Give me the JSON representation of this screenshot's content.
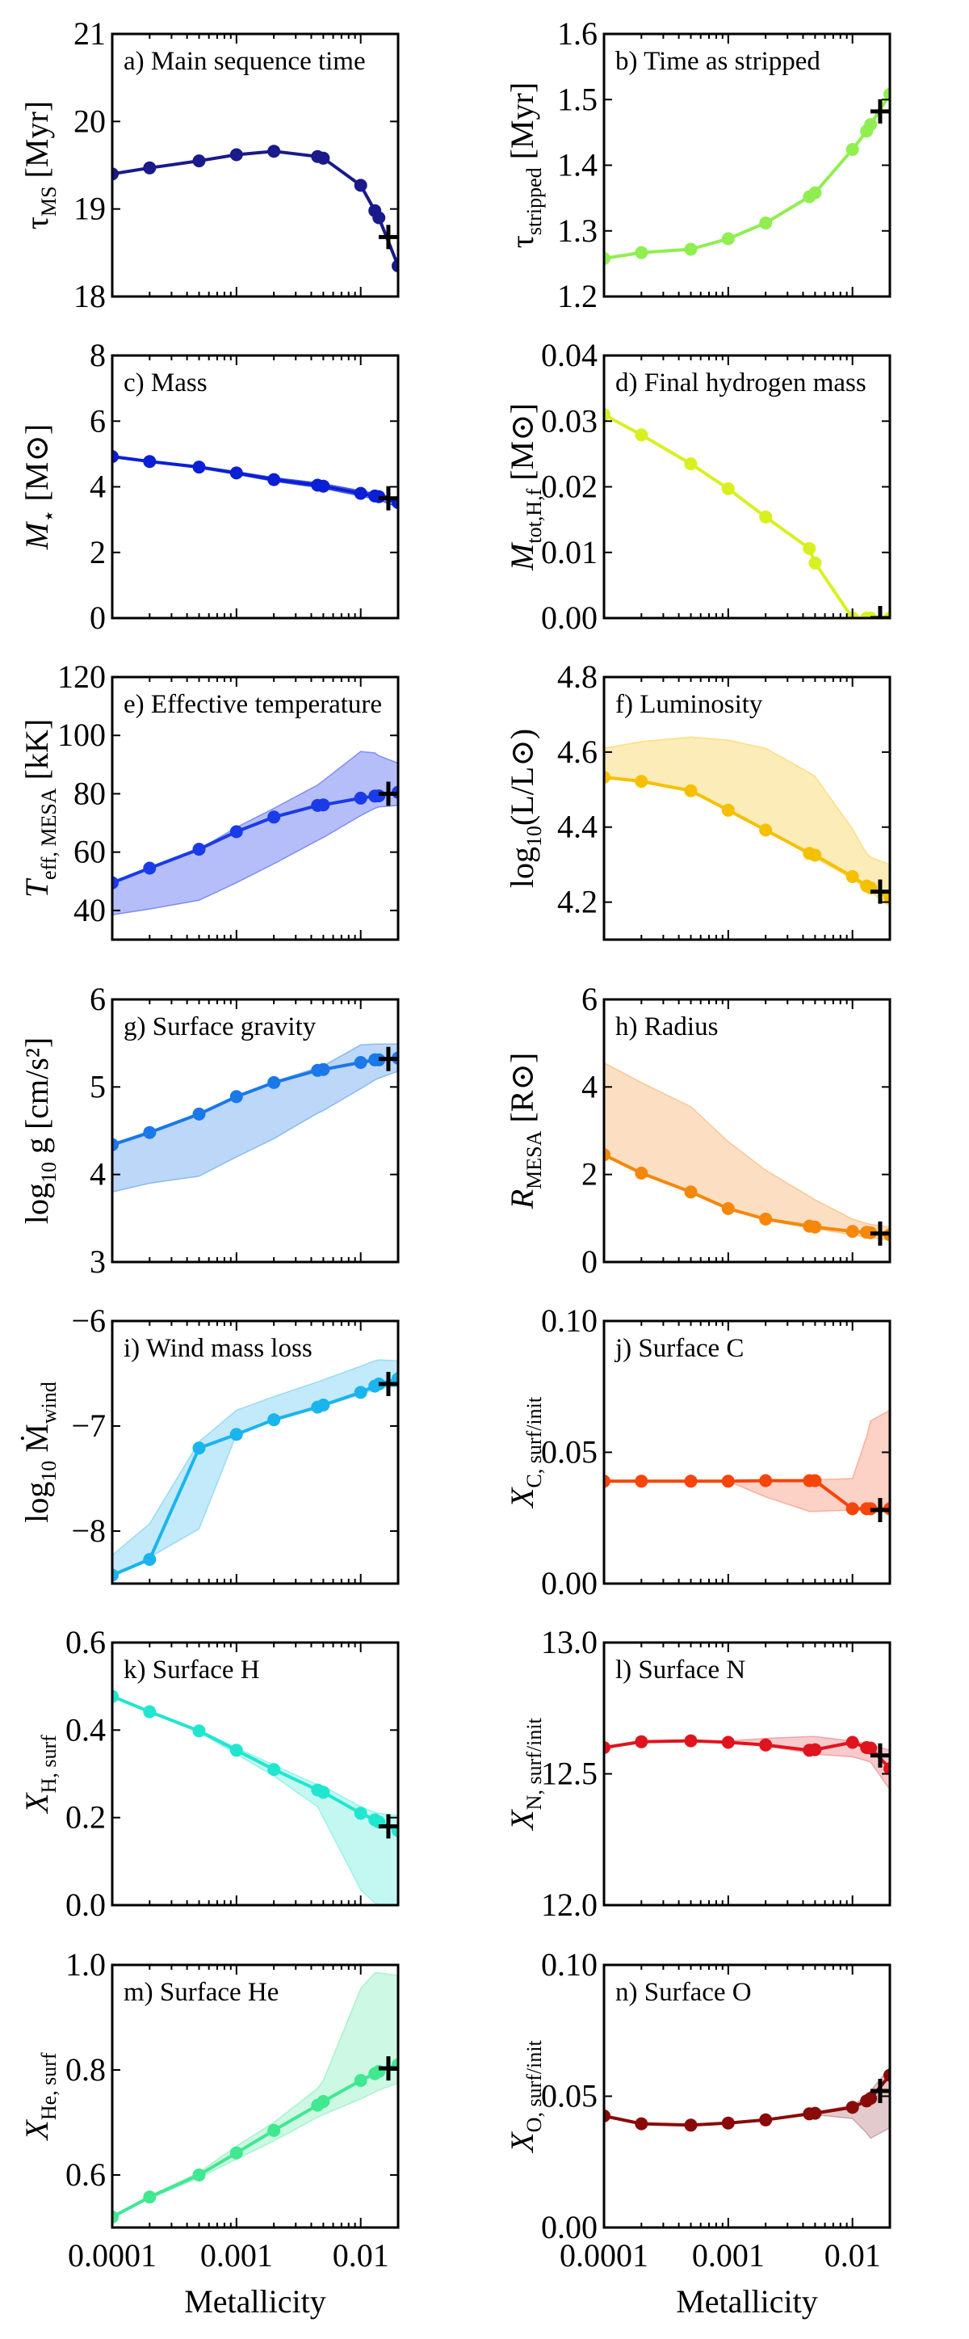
{
  "figure": {
    "xlabel": "Metallicity",
    "x_scale": "log",
    "xlim": [
      0.0001,
      0.02
    ],
    "x_ticks": [
      0.0001,
      0.001,
      0.01
    ],
    "x_tick_labels": [
      "0.0001",
      "0.001",
      "0.01"
    ],
    "marker_color": "#000000",
    "marker_symbol": "+"
  },
  "chart_data": [
    {
      "id": "a",
      "type": "line",
      "title": "a) Main sequence time",
      "ylabel": "τ_MS [Myr]",
      "ylabel_main": "τ",
      "ylabel_sub": "MS",
      "ylabel_unit": " [Myr]",
      "ylim": [
        18,
        21
      ],
      "y_ticks": [
        18,
        19,
        20,
        21
      ],
      "y_tick_labels": [
        "18",
        "19",
        "20",
        "21"
      ],
      "color": "#1a1a8c",
      "band_color": "#1a1a8c",
      "x": [
        0.0001,
        0.0002,
        0.0005,
        0.001,
        0.002,
        0.0045,
        0.005,
        0.01,
        0.013,
        0.014,
        0.02
      ],
      "y": [
        19.4,
        19.47,
        19.55,
        19.62,
        19.66,
        19.6,
        19.58,
        19.27,
        18.98,
        18.9,
        18.35
      ],
      "band_low": null,
      "band_high": null,
      "reference": {
        "x": 0.0167,
        "y": 18.68
      }
    },
    {
      "id": "b",
      "type": "line",
      "title": "b) Time as stripped",
      "ylabel": "τ_stripped [Myr]",
      "ylabel_main": "τ",
      "ylabel_sub": "stripped",
      "ylabel_unit": " [Myr]",
      "ylim": [
        1.2,
        1.6
      ],
      "y_ticks": [
        1.2,
        1.3,
        1.4,
        1.5,
        1.6
      ],
      "y_tick_labels": [
        "1.2",
        "1.3",
        "1.4",
        "1.5",
        "1.6"
      ],
      "color": "#90ee50",
      "band_color": "#90ee50",
      "x": [
        0.0001,
        0.0002,
        0.0005,
        0.001,
        0.002,
        0.0045,
        0.005,
        0.01,
        0.013,
        0.014,
        0.02
      ],
      "y": [
        1.258,
        1.267,
        1.272,
        1.288,
        1.312,
        1.352,
        1.358,
        1.424,
        1.452,
        1.462,
        1.508
      ],
      "band_low": null,
      "band_high": null,
      "reference": {
        "x": 0.0167,
        "y": 1.482
      }
    },
    {
      "id": "c",
      "type": "line",
      "title": "c) Mass",
      "ylabel": "M_⋆ [M_⊙]",
      "ylabel_main": "M",
      "ylabel_sub": "⋆",
      "ylabel_unit": " [M⊙]",
      "ylim": [
        0,
        8
      ],
      "y_ticks": [
        0,
        2,
        4,
        6,
        8
      ],
      "y_tick_labels": [
        "0",
        "2",
        "4",
        "6",
        "8"
      ],
      "color": "#0a1fd6",
      "band_color": "#0a1fd6",
      "x": [
        0.0001,
        0.0002,
        0.0005,
        0.001,
        0.002,
        0.0045,
        0.005,
        0.01,
        0.013,
        0.014,
        0.02
      ],
      "y": [
        4.92,
        4.77,
        4.6,
        4.42,
        4.22,
        4.05,
        4.02,
        3.8,
        3.72,
        3.7,
        3.52
      ],
      "band_low": [
        4.9,
        4.75,
        4.57,
        4.38,
        4.17,
        3.98,
        3.95,
        3.72,
        3.63,
        3.6,
        3.38
      ],
      "band_high": [
        4.95,
        4.8,
        4.63,
        4.46,
        4.28,
        4.12,
        4.09,
        3.88,
        3.8,
        3.78,
        3.62
      ],
      "reference": {
        "x": 0.0167,
        "y": 3.65
      }
    },
    {
      "id": "d",
      "type": "line",
      "title": "d) Final hydrogen mass",
      "ylabel": "M_tot,H,f [M_⊙]",
      "ylabel_main": "M",
      "ylabel_sub": "tot,H,f",
      "ylabel_unit": " [M⊙]",
      "ylim": [
        0.0,
        0.04
      ],
      "y_ticks": [
        0.0,
        0.01,
        0.02,
        0.03,
        0.04
      ],
      "y_tick_labels": [
        "0.00",
        "0.01",
        "0.02",
        "0.03",
        "0.04"
      ],
      "color": "#d8f020",
      "band_color": "#d8f020",
      "x": [
        0.0001,
        0.0002,
        0.0005,
        0.001,
        0.002,
        0.0045,
        0.005,
        0.01,
        0.013,
        0.014,
        0.02
      ],
      "y": [
        0.031,
        0.0279,
        0.0235,
        0.0197,
        0.0154,
        0.0106,
        0.0084,
        0.0,
        0.0,
        0.0,
        0.0
      ],
      "band_low": null,
      "band_high": null,
      "reference": {
        "x": 0.0167,
        "y": 0.0
      }
    },
    {
      "id": "e",
      "type": "line",
      "title": "e) Effective temperature",
      "ylabel": "T_eff,MESA [kK]",
      "ylabel_main": "T",
      "ylabel_sub": "eff, MESA",
      "ylabel_unit": " [kK]",
      "ylim": [
        30,
        120
      ],
      "y_ticks": [
        40,
        60,
        80,
        100,
        120
      ],
      "y_tick_labels": [
        "40",
        "60",
        "80",
        "100",
        "120"
      ],
      "color": "#1a3be8",
      "band_color": "#5a6ef0",
      "x": [
        0.0001,
        0.0002,
        0.0005,
        0.001,
        0.002,
        0.0045,
        0.005,
        0.01,
        0.013,
        0.014,
        0.02
      ],
      "y": [
        49.5,
        54.5,
        61,
        67,
        72,
        76,
        76.2,
        78.5,
        79.2,
        79.3,
        80.5
      ],
      "band_low": [
        38.5,
        40.5,
        43.5,
        49.5,
        56,
        64,
        65,
        72.5,
        75,
        75.5,
        76
      ],
      "band_high": [
        49.5,
        54.5,
        61,
        68.5,
        75,
        83,
        84.5,
        94.5,
        94,
        93,
        90.5
      ],
      "reference": {
        "x": 0.0167,
        "y": 80
      }
    },
    {
      "id": "f",
      "type": "line",
      "title": "f) Luminosity",
      "ylabel": "log10(L/L_⊙)",
      "ylabel_main": "log",
      "ylabel_sub": "10",
      "ylabel_unit": "(L/L⊙)",
      "ylim": [
        4.1,
        4.8
      ],
      "y_ticks": [
        4.2,
        4.4,
        4.6,
        4.8
      ],
      "y_tick_labels": [
        "4.2",
        "4.4",
        "4.6",
        "4.8"
      ],
      "color": "#f5c000",
      "band_color": "#f8d560",
      "x": [
        0.0001,
        0.0002,
        0.0005,
        0.001,
        0.002,
        0.0045,
        0.005,
        0.01,
        0.013,
        0.014,
        0.02
      ],
      "y": [
        4.533,
        4.522,
        4.497,
        4.445,
        4.392,
        4.33,
        4.325,
        4.268,
        4.243,
        4.238,
        4.213
      ],
      "band_low": [
        4.533,
        4.522,
        4.497,
        4.445,
        4.392,
        4.325,
        4.318,
        4.262,
        4.233,
        4.228,
        4.188
      ],
      "band_high": [
        4.61,
        4.628,
        4.64,
        4.632,
        4.61,
        4.545,
        4.535,
        4.395,
        4.33,
        4.32,
        4.3
      ],
      "reference": {
        "x": 0.0167,
        "y": 4.228
      }
    },
    {
      "id": "g",
      "type": "line",
      "title": "g) Surface gravity",
      "ylabel": "log10 g [cm/s^2]",
      "ylabel_main": "log",
      "ylabel_sub": "10",
      "ylabel_unit": " g [cm/s²]",
      "ylim": [
        3,
        6
      ],
      "y_ticks": [
        3,
        4,
        5,
        6
      ],
      "y_tick_labels": [
        "3",
        "4",
        "5",
        "6"
      ],
      "color": "#1a78e8",
      "band_color": "#6aa6ee",
      "x": [
        0.0001,
        0.0002,
        0.0005,
        0.001,
        0.002,
        0.0045,
        0.005,
        0.01,
        0.013,
        0.014,
        0.02
      ],
      "y": [
        4.34,
        4.48,
        4.69,
        4.89,
        5.05,
        5.19,
        5.2,
        5.28,
        5.31,
        5.31,
        5.33
      ],
      "band_low": [
        3.8,
        3.9,
        3.98,
        4.2,
        4.41,
        4.7,
        4.73,
        4.98,
        5.08,
        5.1,
        5.18
      ],
      "band_high": [
        4.34,
        4.48,
        4.69,
        4.9,
        5.06,
        5.22,
        5.24,
        5.48,
        5.49,
        5.49,
        5.49
      ],
      "reference": {
        "x": 0.0167,
        "y": 5.32
      }
    },
    {
      "id": "h",
      "type": "line",
      "title": "h) Radius",
      "ylabel": "R_MESA [R_⊙]",
      "ylabel_main": "R",
      "ylabel_sub": "MESA",
      "ylabel_unit": " [R⊙]",
      "ylim": [
        0,
        6
      ],
      "y_ticks": [
        0,
        2,
        4,
        6
      ],
      "y_tick_labels": [
        "0",
        "2",
        "4",
        "6"
      ],
      "color": "#f5870a",
      "band_color": "#f8b878",
      "x": [
        0.0001,
        0.0002,
        0.0005,
        0.001,
        0.002,
        0.0045,
        0.005,
        0.01,
        0.013,
        0.014,
        0.02
      ],
      "y": [
        2.45,
        2.03,
        1.6,
        1.22,
        0.98,
        0.82,
        0.8,
        0.7,
        0.68,
        0.67,
        0.62
      ],
      "band_low": [
        2.45,
        2.03,
        1.6,
        1.22,
        0.96,
        0.78,
        0.76,
        0.62,
        0.57,
        0.56,
        0.5
      ],
      "band_high": [
        4.55,
        4.1,
        3.55,
        2.75,
        2.1,
        1.5,
        1.42,
        0.98,
        0.88,
        0.86,
        0.8
      ],
      "reference": {
        "x": 0.0167,
        "y": 0.65
      }
    },
    {
      "id": "i",
      "type": "line",
      "title": "i) Wind mass loss",
      "ylabel": "log10 Ṁ_wind",
      "ylabel_main": "log",
      "ylabel_sub": "10",
      "ylabel_unit": " Ṁ",
      "ylabel_sub2": "wind",
      "ylim": [
        -8.5,
        -6
      ],
      "y_ticks": [
        -8,
        -7,
        -6
      ],
      "y_tick_labels": [
        "−8",
        "−7",
        "−6"
      ],
      "color": "#1ab4ee",
      "band_color": "#7ad0f4",
      "x": [
        0.0001,
        0.0002,
        0.0005,
        0.001,
        0.002,
        0.0045,
        0.005,
        0.01,
        0.013,
        0.014,
        0.02
      ],
      "y": [
        -8.42,
        -8.27,
        -7.21,
        -7.08,
        -6.94,
        -6.82,
        -6.8,
        -6.68,
        -6.62,
        -6.6,
        -6.55
      ],
      "band_low": [
        -8.42,
        -8.25,
        -7.98,
        -7.08,
        -6.94,
        -6.83,
        -6.81,
        -6.7,
        -6.65,
        -6.64,
        -6.62
      ],
      "band_high": [
        -8.23,
        -7.93,
        -7.15,
        -6.85,
        -6.72,
        -6.58,
        -6.56,
        -6.43,
        -6.38,
        -6.37,
        -6.38
      ],
      "reference": {
        "x": 0.0167,
        "y": -6.6
      }
    },
    {
      "id": "j",
      "type": "line",
      "title": "j) Surface C",
      "ylabel": "X_C,surf/init",
      "ylabel_main": "X",
      "ylabel_sub": "C, surf/init",
      "ylabel_unit": "",
      "ylim": [
        0.0,
        0.1
      ],
      "y_ticks": [
        0.0,
        0.05,
        0.1
      ],
      "y_tick_labels": [
        "0.00",
        "0.05",
        "0.10"
      ],
      "color": "#f5450a",
      "band_color": "#f89a80",
      "x": [
        0.0001,
        0.0002,
        0.0005,
        0.001,
        0.002,
        0.0045,
        0.005,
        0.01,
        0.013,
        0.014,
        0.02
      ],
      "y": [
        0.039,
        0.039,
        0.039,
        0.039,
        0.0392,
        0.0392,
        0.0392,
        0.0285,
        0.0285,
        0.0285,
        0.0285
      ],
      "band_low": [
        0.039,
        0.039,
        0.039,
        0.039,
        0.033,
        0.0275,
        0.0275,
        0.028,
        0.028,
        0.028,
        0.028
      ],
      "band_high": [
        0.039,
        0.039,
        0.039,
        0.039,
        0.0392,
        0.0395,
        0.0395,
        0.04,
        0.056,
        0.062,
        0.066
      ],
      "reference": {
        "x": 0.0167,
        "y": 0.028
      }
    },
    {
      "id": "k",
      "type": "line",
      "title": "k) Surface H",
      "ylabel": "X_H,surf",
      "ylabel_main": "X",
      "ylabel_sub": "H, surf",
      "ylabel_unit": "",
      "ylim": [
        0.0,
        0.6
      ],
      "y_ticks": [
        0.0,
        0.2,
        0.4,
        0.6
      ],
      "y_tick_labels": [
        "0.0",
        "0.2",
        "0.4",
        "0.6"
      ],
      "color": "#20e6d0",
      "band_color": "#7af0e2",
      "x": [
        0.0001,
        0.0002,
        0.0005,
        0.001,
        0.002,
        0.0045,
        0.005,
        0.01,
        0.013,
        0.014,
        0.02
      ],
      "y": [
        0.477,
        0.442,
        0.398,
        0.354,
        0.31,
        0.263,
        0.258,
        0.21,
        0.195,
        0.19,
        0.17
      ],
      "band_low": [
        0.477,
        0.442,
        0.395,
        0.345,
        0.295,
        0.225,
        0.2,
        0.035,
        0.005,
        0.0,
        0.0
      ],
      "band_high": [
        0.477,
        0.442,
        0.4,
        0.36,
        0.32,
        0.275,
        0.272,
        0.225,
        0.212,
        0.21,
        0.205
      ],
      "reference": {
        "x": 0.0167,
        "y": 0.18
      }
    },
    {
      "id": "l",
      "type": "line",
      "title": "l) Surface N",
      "ylabel": "X_N,surf/init",
      "ylabel_main": "X",
      "ylabel_sub": "N, surf/init",
      "ylabel_unit": "",
      "ylim": [
        12.0,
        13.0
      ],
      "y_ticks": [
        12.0,
        12.5,
        13.0
      ],
      "y_tick_labels": [
        "12.0",
        "12.5",
        "13.0"
      ],
      "color": "#e0141e",
      "band_color": "#ee8a8e",
      "x": [
        0.0001,
        0.0002,
        0.0005,
        0.001,
        0.002,
        0.0045,
        0.005,
        0.01,
        0.013,
        0.014,
        0.02
      ],
      "y": [
        12.6,
        12.622,
        12.626,
        12.62,
        12.61,
        12.59,
        12.592,
        12.62,
        12.6,
        12.598,
        12.52
      ],
      "band_low": [
        12.6,
        12.622,
        12.626,
        12.62,
        12.605,
        12.58,
        12.575,
        12.565,
        12.55,
        12.545,
        12.44
      ],
      "band_high": [
        12.6,
        12.622,
        12.626,
        12.625,
        12.635,
        12.642,
        12.642,
        12.625,
        12.615,
        12.612,
        12.59
      ],
      "reference": {
        "x": 0.0167,
        "y": 12.57
      }
    },
    {
      "id": "m",
      "type": "line",
      "title": "m) Surface He",
      "ylabel": "X_He,surf",
      "ylabel_main": "X",
      "ylabel_sub": "He, surf",
      "ylabel_unit": "",
      "ylim": [
        0.5,
        1.0
      ],
      "y_ticks": [
        0.6,
        0.8,
        1.0
      ],
      "y_tick_labels": [
        "0.6",
        "0.8",
        "1.0"
      ],
      "color": "#40e890",
      "band_color": "#90f0c0",
      "x": [
        0.0001,
        0.0002,
        0.0005,
        0.001,
        0.002,
        0.0045,
        0.005,
        0.01,
        0.013,
        0.014,
        0.02
      ],
      "y": [
        0.52,
        0.558,
        0.6,
        0.642,
        0.685,
        0.733,
        0.74,
        0.78,
        0.793,
        0.797,
        0.81
      ],
      "band_low": [
        0.52,
        0.555,
        0.595,
        0.63,
        0.665,
        0.71,
        0.715,
        0.745,
        0.758,
        0.762,
        0.775
      ],
      "band_high": [
        0.52,
        0.56,
        0.605,
        0.655,
        0.7,
        0.765,
        0.78,
        0.955,
        0.985,
        0.985,
        0.98
      ],
      "reference": {
        "x": 0.0167,
        "y": 0.803
      }
    },
    {
      "id": "n",
      "type": "line",
      "title": "n) Surface O",
      "ylabel": "X_O,surf/init",
      "ylabel_main": "X",
      "ylabel_sub": "O, surf/init",
      "ylabel_unit": "",
      "ylim": [
        0.0,
        0.1
      ],
      "y_ticks": [
        0.0,
        0.05,
        0.1
      ],
      "y_tick_labels": [
        "0.00",
        "0.05",
        "0.10"
      ],
      "color": "#8a0a0a",
      "band_color": "#c08a8e",
      "x": [
        0.0001,
        0.0002,
        0.0005,
        0.001,
        0.002,
        0.0045,
        0.005,
        0.01,
        0.013,
        0.014,
        0.02
      ],
      "y": [
        0.0425,
        0.0395,
        0.039,
        0.0398,
        0.041,
        0.0433,
        0.0435,
        0.0458,
        0.0482,
        0.0492,
        0.058
      ],
      "band_low": [
        0.0425,
        0.0395,
        0.039,
        0.0398,
        0.041,
        0.0428,
        0.043,
        0.0415,
        0.036,
        0.034,
        0.038
      ],
      "band_high": [
        0.0425,
        0.0395,
        0.039,
        0.0398,
        0.041,
        0.0438,
        0.044,
        0.0465,
        0.05,
        0.052,
        0.061
      ],
      "reference": {
        "x": 0.0167,
        "y": 0.052
      }
    }
  ]
}
